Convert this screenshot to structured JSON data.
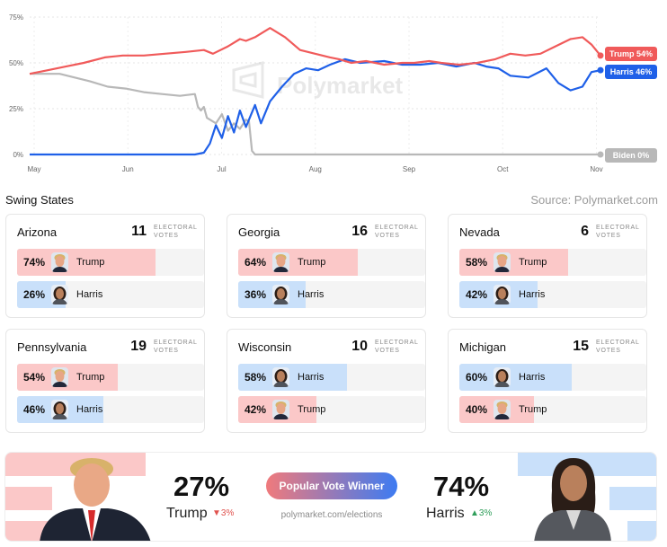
{
  "chart_data": {
    "type": "line",
    "watermark": "Polymarket",
    "x_ticks": [
      "May",
      "Jun",
      "Jul",
      "Aug",
      "Sep",
      "Oct",
      "Nov"
    ],
    "y_ticks": [
      "0%",
      "25%",
      "50%",
      "75%"
    ],
    "ylim": [
      0,
      75
    ],
    "xlim": [
      0,
      190
    ],
    "series": [
      {
        "name": "Trump",
        "label": "Trump 54%",
        "color": "#f05a5a",
        "x": [
          0,
          6,
          12,
          18,
          25,
          31,
          38,
          45,
          52,
          58,
          61,
          66,
          70,
          72,
          75,
          80,
          85,
          90,
          95,
          100,
          103,
          107,
          112,
          118,
          124,
          128,
          133,
          137,
          143,
          149,
          155,
          160,
          165,
          170,
          175,
          180,
          184,
          187,
          190
        ],
        "y": [
          44,
          46,
          48,
          50,
          53,
          54,
          54,
          55,
          56,
          57,
          55,
          59,
          63,
          62,
          64,
          69,
          64,
          57,
          55,
          53,
          52,
          50,
          51,
          49,
          50,
          50,
          51,
          50,
          49,
          50,
          52,
          55,
          54,
          55,
          59,
          63,
          64,
          60,
          54
        ]
      },
      {
        "name": "Harris",
        "label": "Harris 46%",
        "color": "#1f60e8",
        "x": [
          0,
          30,
          55,
          58,
          60,
          62,
          64,
          66,
          68,
          70,
          72,
          75,
          77,
          80,
          84,
          88,
          92,
          96,
          100,
          105,
          110,
          118,
          124,
          130,
          136,
          142,
          148,
          152,
          156,
          160,
          166,
          172,
          176,
          180,
          184,
          187,
          190
        ],
        "y": [
          0,
          0,
          0,
          1,
          6,
          16,
          9,
          21,
          12,
          24,
          15,
          27,
          17,
          29,
          37,
          44,
          47,
          46,
          49,
          52,
          50,
          51,
          49,
          49,
          50,
          48,
          50,
          48,
          47,
          43,
          42,
          47,
          39,
          35,
          37,
          45,
          46
        ]
      },
      {
        "name": "Biden",
        "label": "Biden 0%",
        "color": "#b8b8b8",
        "x": [
          0,
          10,
          15,
          20,
          26,
          32,
          38,
          44,
          50,
          55,
          56,
          57,
          58,
          59,
          60,
          62,
          64,
          66,
          68,
          70,
          72,
          73,
          74,
          75,
          190
        ],
        "y": [
          44,
          44,
          42,
          40,
          37,
          36,
          34,
          33,
          32,
          33,
          26,
          24,
          26,
          20,
          19,
          17,
          22,
          13,
          17,
          14,
          19,
          18,
          2,
          0,
          0
        ]
      }
    ]
  },
  "swing_title": "Swing States",
  "source": "Source: Polymarket.com",
  "ev_label_line1": "ELECTORAL",
  "ev_label_line2": "VOTES",
  "states": [
    {
      "name": "Arizona",
      "ev": "11",
      "rows": [
        {
          "pct": "74%",
          "value": 74,
          "candidate": "Trump",
          "party": "rep"
        },
        {
          "pct": "26%",
          "value": 26,
          "candidate": "Harris",
          "party": "dem"
        }
      ]
    },
    {
      "name": "Georgia",
      "ev": "16",
      "rows": [
        {
          "pct": "64%",
          "value": 64,
          "candidate": "Trump",
          "party": "rep"
        },
        {
          "pct": "36%",
          "value": 36,
          "candidate": "Harris",
          "party": "dem"
        }
      ]
    },
    {
      "name": "Nevada",
      "ev": "6",
      "rows": [
        {
          "pct": "58%",
          "value": 58,
          "candidate": "Trump",
          "party": "rep"
        },
        {
          "pct": "42%",
          "value": 42,
          "candidate": "Harris",
          "party": "dem"
        }
      ]
    },
    {
      "name": "Pennsylvania",
      "ev": "19",
      "rows": [
        {
          "pct": "54%",
          "value": 54,
          "candidate": "Trump",
          "party": "rep"
        },
        {
          "pct": "46%",
          "value": 46,
          "candidate": "Harris",
          "party": "dem"
        }
      ]
    },
    {
      "name": "Wisconsin",
      "ev": "10",
      "rows": [
        {
          "pct": "58%",
          "value": 58,
          "candidate": "Harris",
          "party": "dem"
        },
        {
          "pct": "42%",
          "value": 42,
          "candidate": "Trump",
          "party": "rep"
        }
      ]
    },
    {
      "name": "Michigan",
      "ev": "15",
      "rows": [
        {
          "pct": "60%",
          "value": 60,
          "candidate": "Harris",
          "party": "dem"
        },
        {
          "pct": "40%",
          "value": 40,
          "candidate": "Trump",
          "party": "rep"
        }
      ]
    }
  ],
  "colors": {
    "rep_fill": "#fbc8c8",
    "dem_fill": "#c9e0fa",
    "rep_dark": "#e0534f",
    "dem_dark": "#2f9e5a"
  },
  "popular_vote": {
    "pill": "Popular Vote Winner",
    "url": "polymarket.com/elections",
    "trump": {
      "pct": "27%",
      "name": "Trump",
      "change": "3%"
    },
    "harris": {
      "pct": "74%",
      "name": "Harris",
      "change": "3%"
    }
  }
}
